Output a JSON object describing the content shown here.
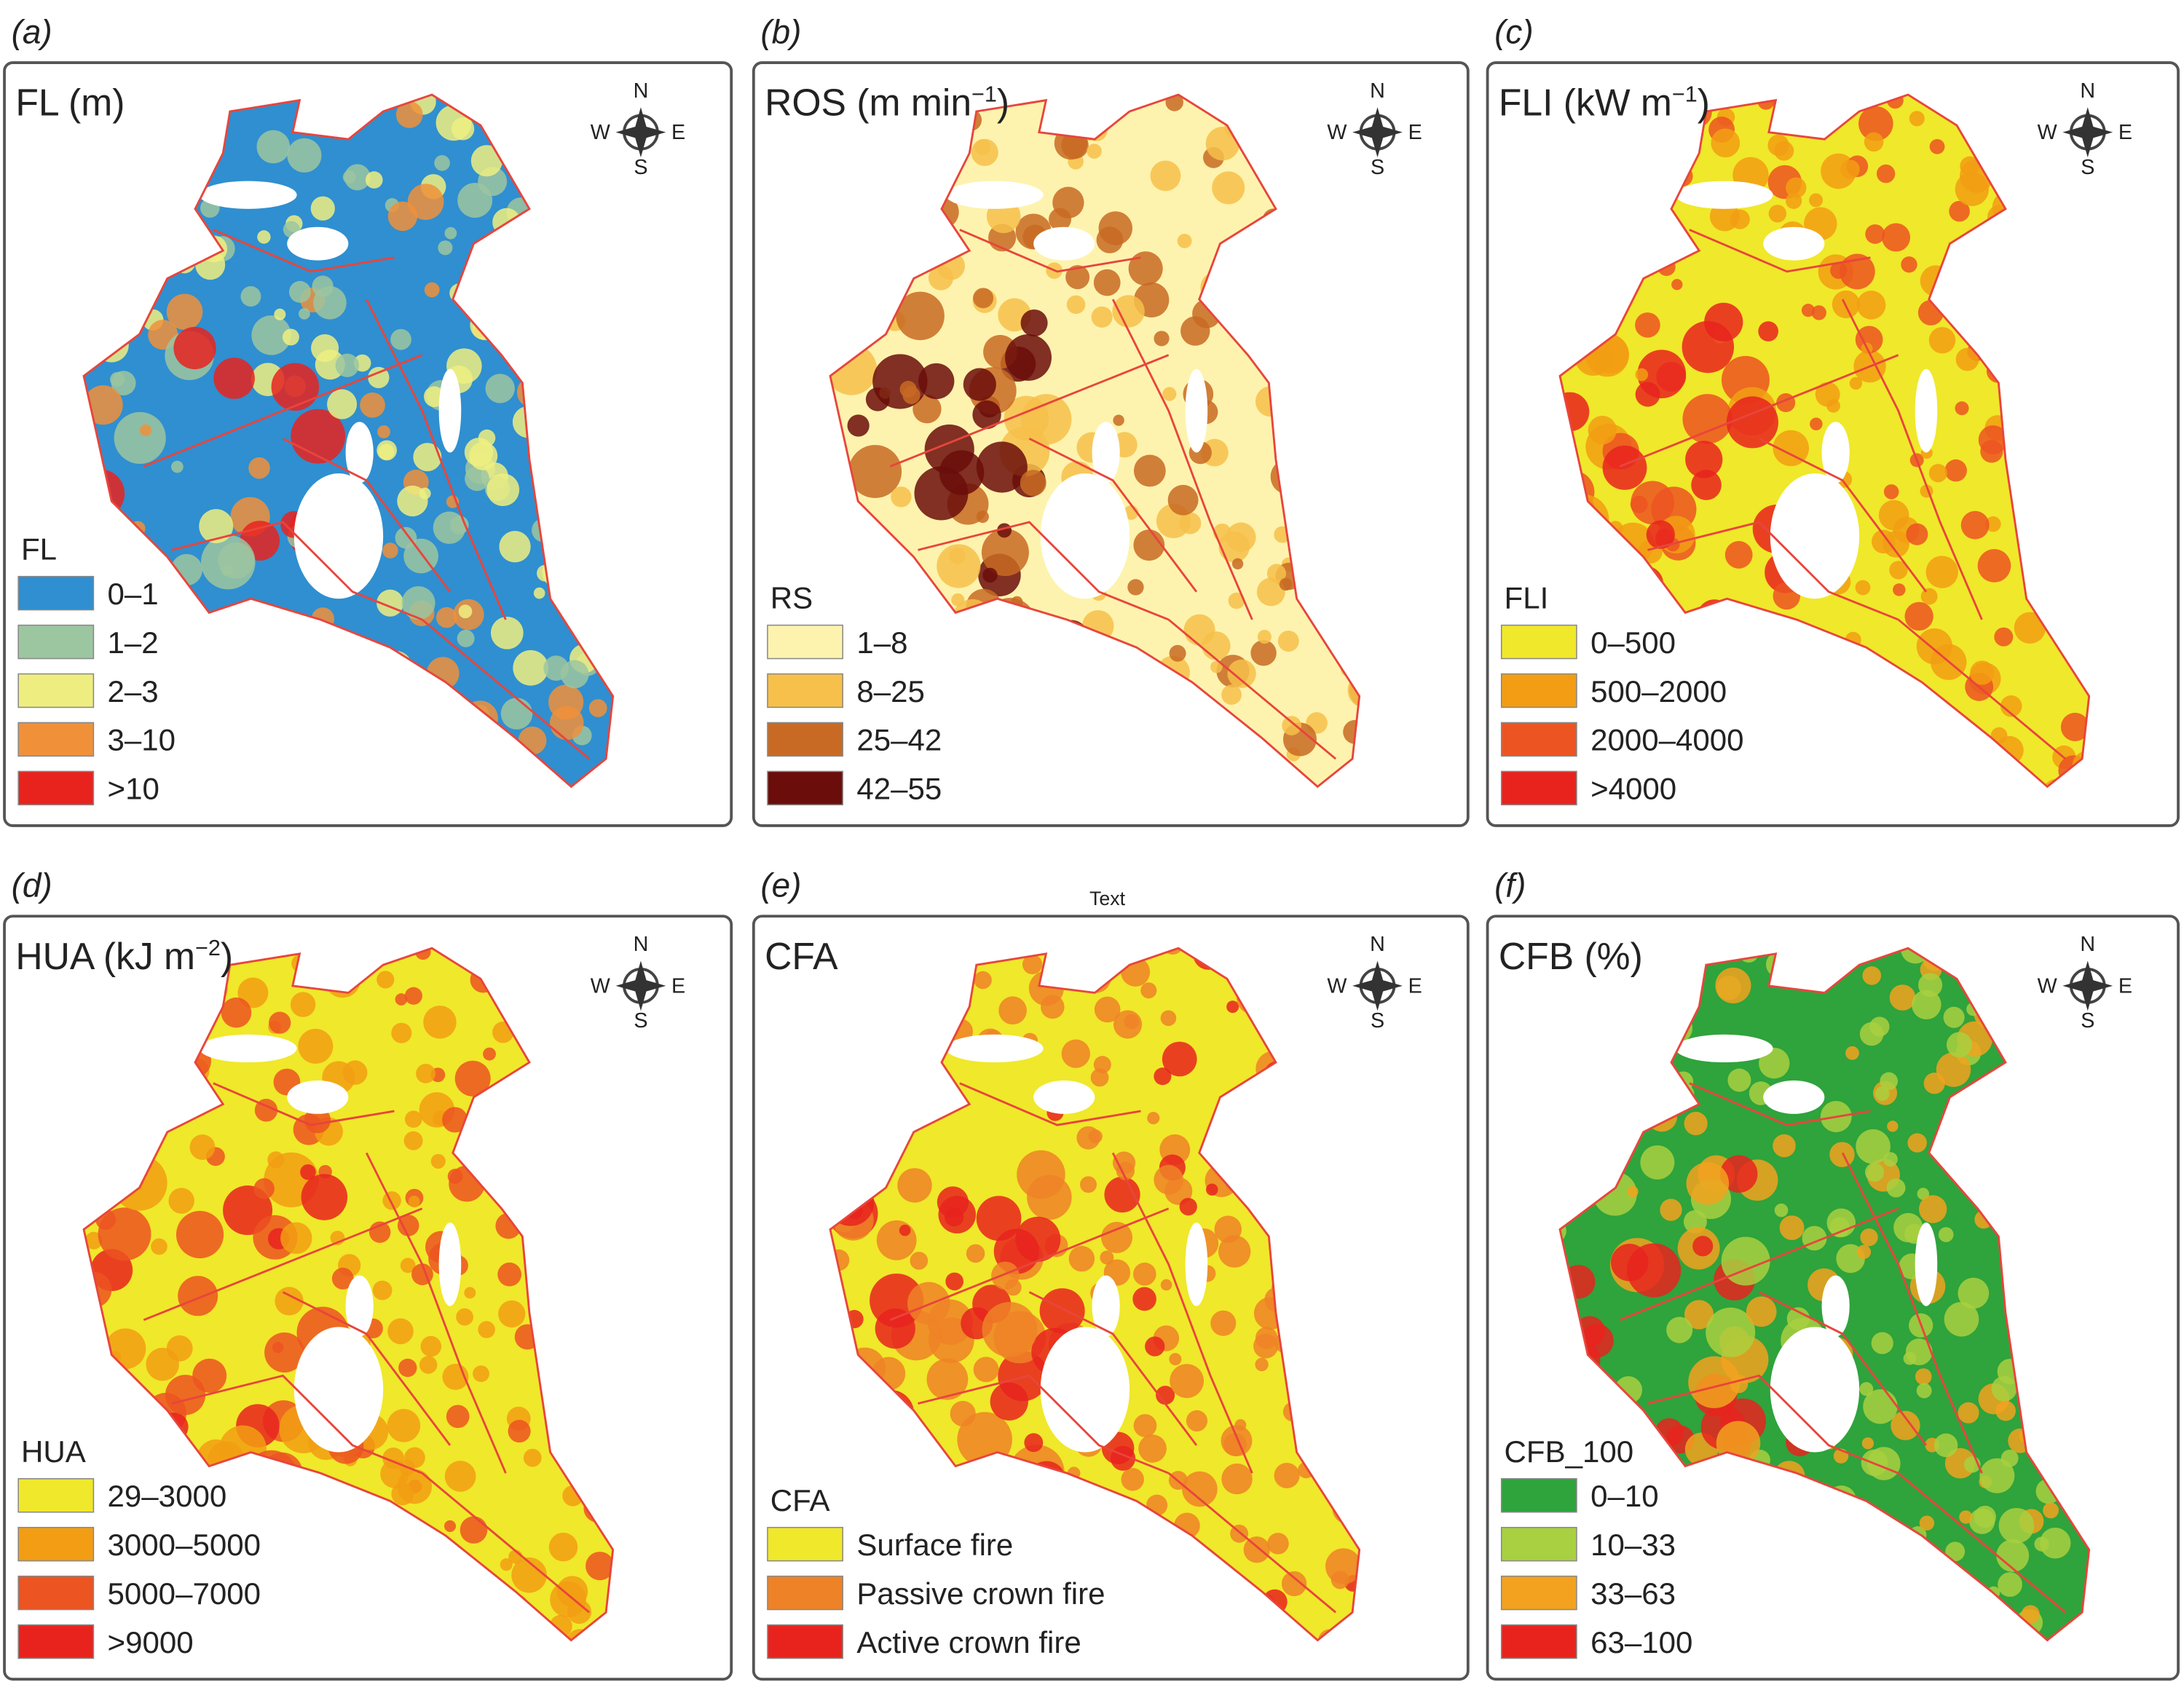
{
  "stray_label": "Text",
  "compass": {
    "n": "N",
    "e": "E",
    "s": "S",
    "w": "W"
  },
  "panels": [
    {
      "letter": "(a)",
      "title": {
        "main": "FL (m)"
      },
      "legend_title": "FL",
      "items": [
        {
          "label": "0–1",
          "color": "#2f8fd0"
        },
        {
          "label": "1–2",
          "color": "#9cc6a0"
        },
        {
          "label": "2–3",
          "color": "#eeee80"
        },
        {
          "label": "3–10",
          "color": "#f0913a"
        },
        {
          "label": ">10",
          "color": "#e8231e"
        }
      ]
    },
    {
      "letter": "(b)",
      "title": {
        "main": "ROS (m min",
        "sup": "−1",
        "end": ")"
      },
      "legend_title": "RS",
      "items": [
        {
          "label": "1–8",
          "color": "#fdf3ae"
        },
        {
          "label": "8–25",
          "color": "#f6c04a"
        },
        {
          "label": "25–42",
          "color": "#c86a23"
        },
        {
          "label": "42–55",
          "color": "#6b0d0a"
        }
      ]
    },
    {
      "letter": "(c)",
      "title": {
        "main": "FLI (kW m",
        "sup": "−1",
        "end": ")"
      },
      "legend_title": "FLI",
      "items": [
        {
          "label": "0–500",
          "color": "#f0e82a"
        },
        {
          "label": "500–2000",
          "color": "#f29d13"
        },
        {
          "label": "2000–4000",
          "color": "#ec5421"
        },
        {
          "label": ">4000",
          "color": "#e8231e"
        }
      ]
    },
    {
      "letter": "(d)",
      "title": {
        "main": "HUA (kJ m",
        "sup": "−2",
        "end": ")"
      },
      "legend_title": "HUA",
      "items": [
        {
          "label": "29–3000",
          "color": "#f0e82a"
        },
        {
          "label": "3000–5000",
          "color": "#f29d13"
        },
        {
          "label": "5000–7000",
          "color": "#ec5421"
        },
        {
          "label": ">9000",
          "color": "#e8231e"
        }
      ]
    },
    {
      "letter": "(e)",
      "title": {
        "main": "CFA"
      },
      "legend_title": "CFA",
      "items": [
        {
          "label": "Surface fire",
          "color": "#f0e82a"
        },
        {
          "label": "Passive crown fire",
          "color": "#ee8227"
        },
        {
          "label": "Active crown fire",
          "color": "#e8231e"
        }
      ]
    },
    {
      "letter": "(f)",
      "title": {
        "main": "CFB (%)"
      },
      "legend_title": "CFB_100",
      "items": [
        {
          "label": "0–10",
          "color": "#2fa33c"
        },
        {
          "label": "10–33",
          "color": "#a8d040"
        },
        {
          "label": "33–63",
          "color": "#f2a21e"
        },
        {
          "label": "63–100",
          "color": "#e8231e"
        }
      ]
    }
  ]
}
